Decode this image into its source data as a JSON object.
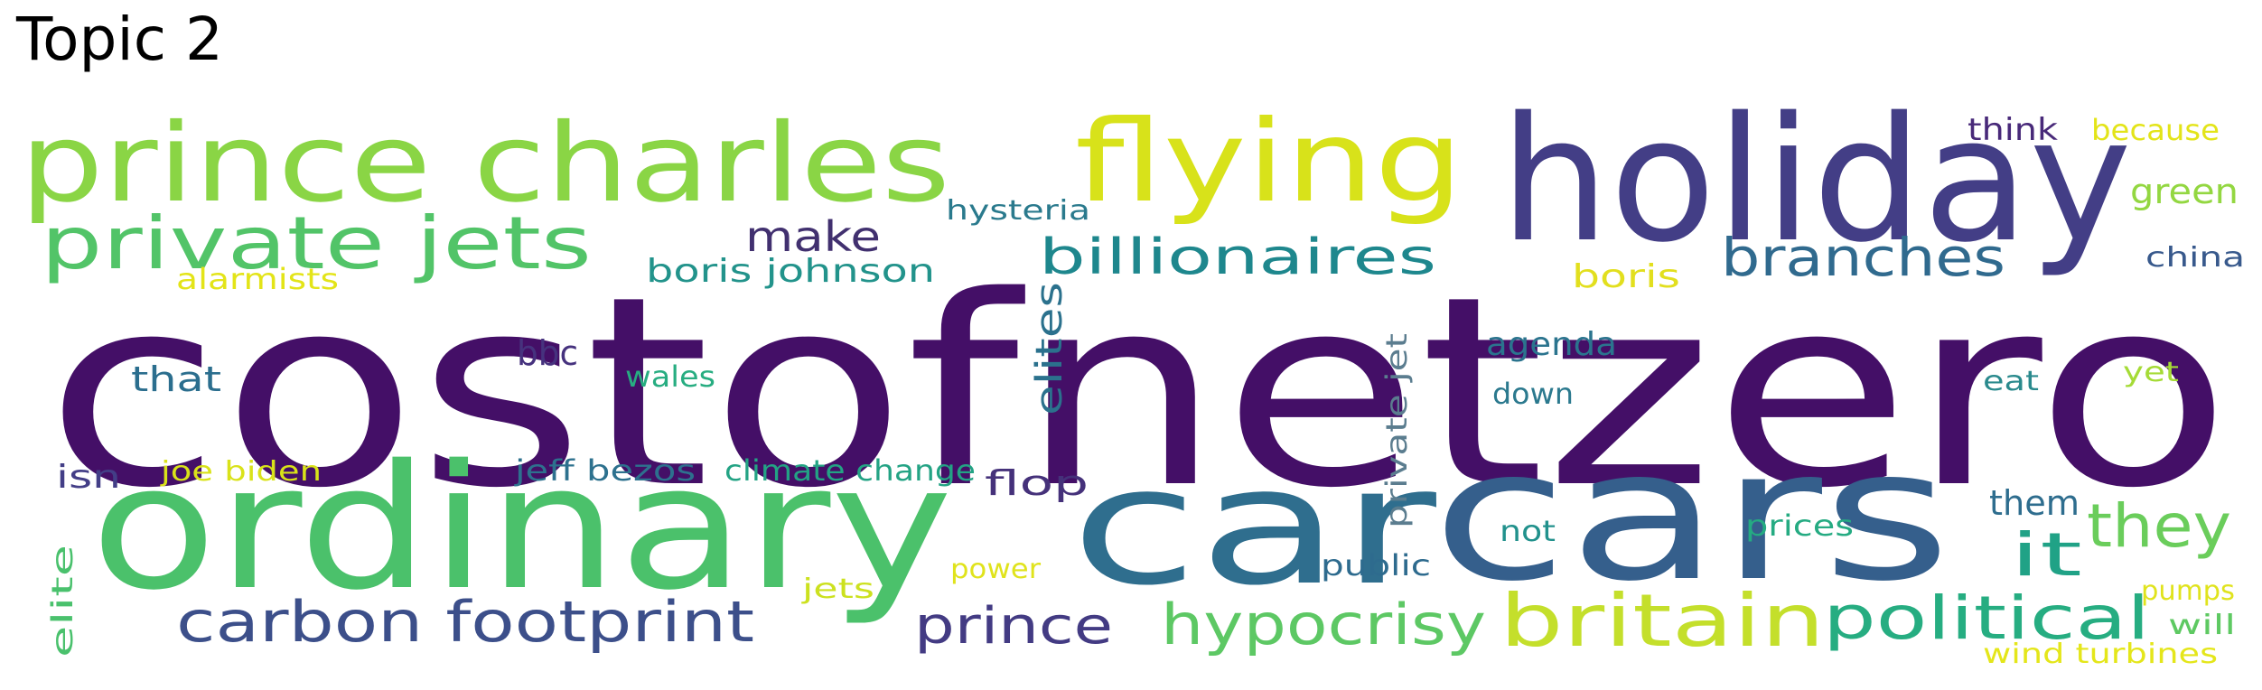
{
  "title": "Topic 2",
  "words": [
    {
      "text": "costofnetzero",
      "color": "#440f67"
    },
    {
      "text": "holiday",
      "color": "#433e86"
    },
    {
      "text": "cars",
      "color": "#355f8c"
    },
    {
      "text": "ordinary",
      "color": "#4bc16b"
    },
    {
      "text": "car",
      "color": "#2f6e8e"
    },
    {
      "text": "prince charles",
      "color": "#8ad545"
    },
    {
      "text": "flying",
      "color": "#d8e21a"
    },
    {
      "text": "private jets",
      "color": "#52c468"
    },
    {
      "text": "britain",
      "color": "#c4df2b"
    },
    {
      "text": "carbon footprint",
      "color": "#3c4f8a"
    },
    {
      "text": "hypocrisy",
      "color": "#5dc864"
    },
    {
      "text": "political",
      "color": "#26ad81"
    },
    {
      "text": "prince",
      "color": "#433b83"
    },
    {
      "text": "billionaires",
      "color": "#1e878d"
    },
    {
      "text": "branches",
      "color": "#306a8e"
    },
    {
      "text": "they",
      "color": "#6acd5b"
    },
    {
      "text": "it",
      "color": "#20a286"
    },
    {
      "text": "make",
      "color": "#41306f"
    },
    {
      "text": "elites",
      "color": "#2b718d"
    },
    {
      "text": "private jet",
      "color": "#5b7d8f"
    },
    {
      "text": "boris johnson",
      "color": "#22938b"
    },
    {
      "text": "flop",
      "color": "#45317a"
    },
    {
      "text": "agenda",
      "color": "#2b748e"
    },
    {
      "text": "boris",
      "color": "#e2df1e"
    },
    {
      "text": "hysteria",
      "color": "#2a7a8d"
    },
    {
      "text": "that",
      "color": "#2b6e8e"
    },
    {
      "text": "bbc",
      "color": "#46327e"
    },
    {
      "text": "them",
      "color": "#2e6d8e"
    },
    {
      "text": "green",
      "color": "#93d741"
    },
    {
      "text": "jeff bezos",
      "color": "#2d718e"
    },
    {
      "text": "climate change",
      "color": "#23a384"
    },
    {
      "text": "alarmists",
      "color": "#e3e418"
    },
    {
      "text": "joe biden",
      "color": "#d9e219"
    },
    {
      "text": "isn",
      "color": "#433e87"
    },
    {
      "text": "public",
      "color": "#2e6b8e"
    },
    {
      "text": "wales",
      "color": "#27ad81"
    },
    {
      "text": "down",
      "color": "#2b798e"
    },
    {
      "text": "think",
      "color": "#482979"
    },
    {
      "text": "because",
      "color": "#e3e419"
    },
    {
      "text": "prices",
      "color": "#25ab82"
    },
    {
      "text": "not",
      "color": "#21918c"
    },
    {
      "text": "eat",
      "color": "#2a8a8d"
    },
    {
      "text": "yet",
      "color": "#a5db36"
    },
    {
      "text": "china",
      "color": "#38598c"
    },
    {
      "text": "elite",
      "color": "#4ac16d"
    },
    {
      "text": "power",
      "color": "#e0e31c"
    },
    {
      "text": "jets",
      "color": "#cce11f"
    },
    {
      "text": "pumps",
      "color": "#e0e31d"
    },
    {
      "text": "will",
      "color": "#5ec962"
    },
    {
      "text": "wind turbines",
      "color": "#e4e61a"
    }
  ]
}
